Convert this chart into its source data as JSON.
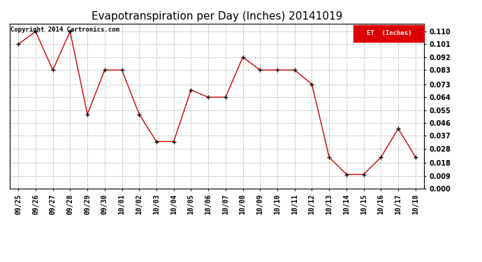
{
  "title": "Evapotranspiration per Day (Inches) 20141019",
  "copyright_text": "Copyright 2014 Cartronics.com",
  "legend_label": "ET  (Inches)",
  "legend_bg": "#dd0000",
  "legend_fg": "#ffffff",
  "x_labels": [
    "09/25",
    "09/26",
    "09/27",
    "09/28",
    "09/29",
    "09/30",
    "10/01",
    "10/02",
    "10/03",
    "10/04",
    "10/05",
    "10/06",
    "10/07",
    "10/08",
    "10/09",
    "10/10",
    "10/11",
    "10/12",
    "10/13",
    "10/14",
    "10/15",
    "10/16",
    "10/17",
    "10/18"
  ],
  "y_values": [
    0.101,
    0.11,
    0.083,
    0.11,
    0.052,
    0.083,
    0.083,
    0.052,
    0.033,
    0.033,
    0.069,
    0.064,
    0.064,
    0.092,
    0.083,
    0.083,
    0.083,
    0.073,
    0.022,
    0.01,
    0.01,
    0.022,
    0.042,
    0.022
  ],
  "ylim": [
    0.0,
    0.1155
  ],
  "yticks": [
    0.0,
    0.009,
    0.018,
    0.028,
    0.037,
    0.046,
    0.055,
    0.064,
    0.073,
    0.083,
    0.092,
    0.101,
    0.11
  ],
  "line_color": "#cc0000",
  "marker_color": "#000000",
  "bg_color": "#ffffff",
  "plot_bg_color": "#ffffff",
  "grid_color": "#bbbbbb",
  "title_fontsize": 11,
  "axis_fontsize": 7,
  "copyright_fontsize": 6.5
}
